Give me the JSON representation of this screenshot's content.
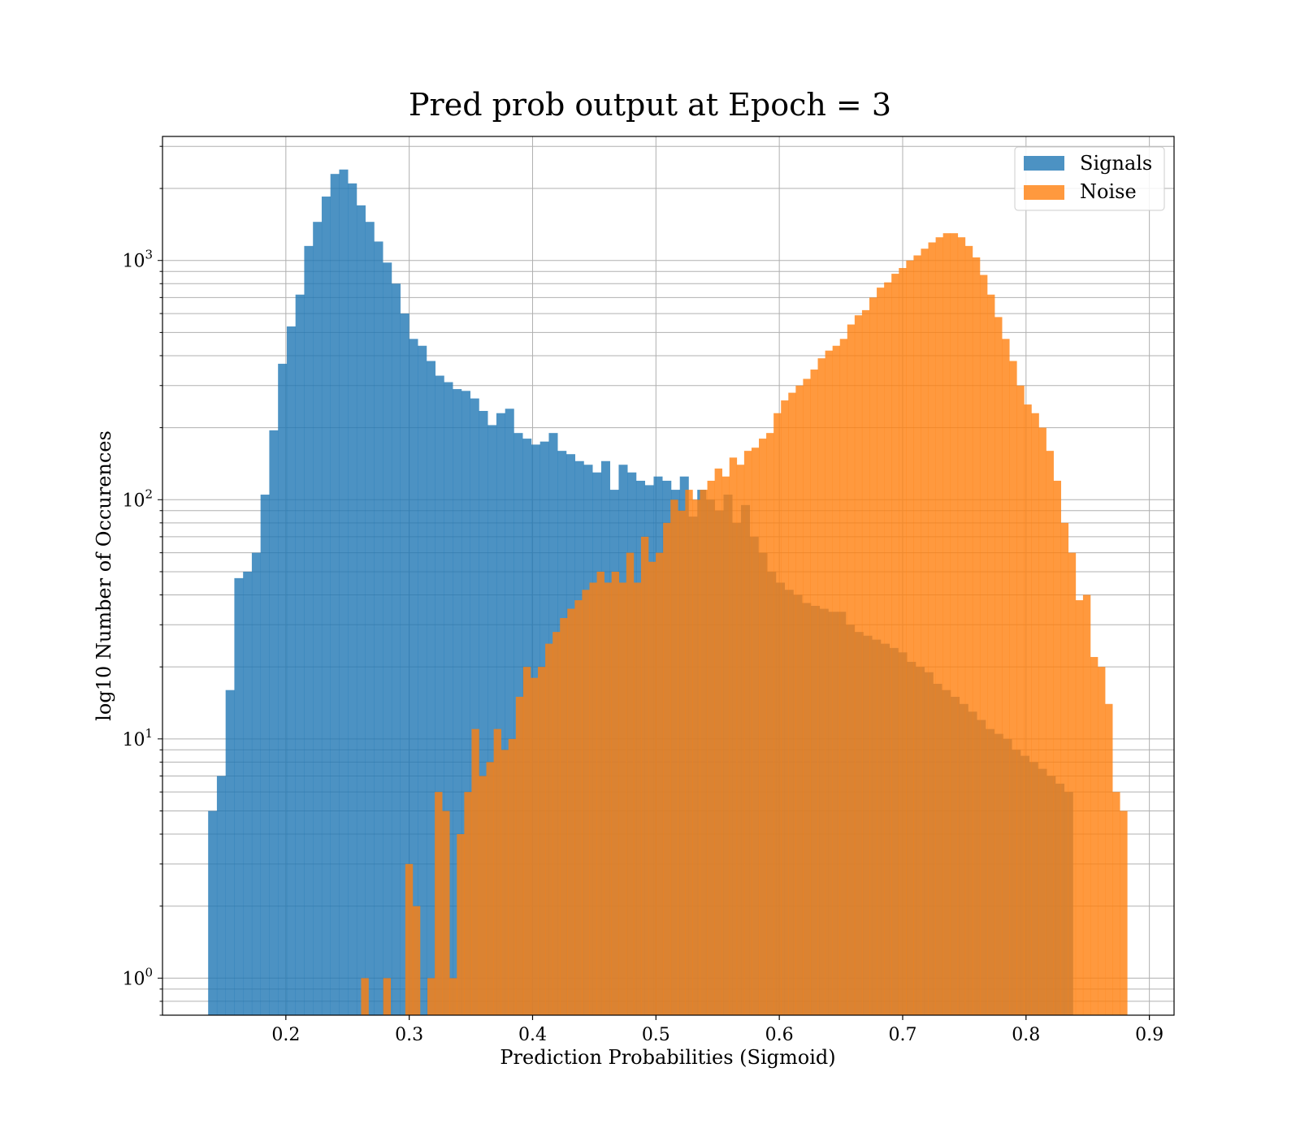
{
  "chart_data": {
    "type": "bar",
    "title": "Pred prob output at Epoch = 3",
    "xlabel": "Prediction Probabilities (Sigmoid)",
    "ylabel": "log10 Number of Occurences",
    "x_scale": "linear",
    "y_scale": "log",
    "xlim": [
      0.1,
      0.92
    ],
    "ylim": [
      0.7,
      3300
    ],
    "grid": true,
    "legend_position": "top-right",
    "x_ticks": [
      {
        "value": 0.2,
        "label": "0.2"
      },
      {
        "value": 0.3,
        "label": "0.3"
      },
      {
        "value": 0.4,
        "label": "0.4"
      },
      {
        "value": 0.5,
        "label": "0.5"
      },
      {
        "value": 0.6,
        "label": "0.6"
      },
      {
        "value": 0.7,
        "label": "0.7"
      },
      {
        "value": 0.8,
        "label": "0.8"
      },
      {
        "value": 0.9,
        "label": "0.9"
      }
    ],
    "y_ticks": [
      {
        "value": 1,
        "base": "10",
        "exponent": "0"
      },
      {
        "value": 10,
        "base": "10",
        "exponent": "1"
      },
      {
        "value": 100,
        "base": "10",
        "exponent": "2"
      },
      {
        "value": 1000,
        "base": "10",
        "exponent": "3"
      }
    ],
    "series": [
      {
        "name": "Signals",
        "color": "#1f77b4",
        "opacity": 0.8,
        "x_start": 0.137,
        "x_end": 0.838,
        "values": [
          5,
          7,
          16,
          47,
          50,
          60,
          105,
          195,
          370,
          530,
          720,
          1150,
          1450,
          1850,
          2300,
          2400,
          2100,
          1700,
          1450,
          1200,
          980,
          800,
          600,
          470,
          440,
          380,
          330,
          310,
          290,
          285,
          265,
          235,
          205,
          230,
          240,
          190,
          180,
          170,
          175,
          190,
          160,
          155,
          145,
          140,
          130,
          145,
          110,
          140,
          130,
          120,
          115,
          125,
          120,
          110,
          125,
          85,
          110,
          100,
          90,
          105,
          80,
          95,
          70,
          60,
          50,
          45,
          42,
          40,
          37,
          36,
          35,
          34,
          34,
          30,
          28,
          27,
          26,
          25,
          24,
          23,
          21,
          20,
          19,
          17,
          16,
          15,
          14,
          13,
          12,
          11,
          10.5,
          10,
          9,
          8.5,
          8,
          7.5,
          7,
          6.5,
          6
        ]
      },
      {
        "name": "Noise",
        "color": "#ff7f0e",
        "opacity": 0.8,
        "x_start": 0.261,
        "x_end": 0.882,
        "values": [
          1,
          0.5,
          0.5,
          1,
          0.5,
          0.5,
          3,
          2,
          0.5,
          1,
          6,
          5,
          1,
          4,
          6,
          11,
          7,
          8,
          11,
          9,
          10,
          15,
          20,
          18,
          20,
          25,
          28,
          32,
          35,
          38,
          42,
          45,
          50,
          45,
          50,
          45,
          60,
          45,
          70,
          55,
          60,
          80,
          100,
          90,
          110,
          100,
          110,
          120,
          135,
          125,
          150,
          140,
          160,
          165,
          180,
          190,
          230,
          260,
          280,
          300,
          320,
          350,
          390,
          420,
          440,
          470,
          540,
          590,
          620,
          700,
          770,
          810,
          880,
          930,
          1000,
          1050,
          1120,
          1190,
          1250,
          1300,
          1300,
          1250,
          1150,
          1030,
          870,
          720,
          580,
          470,
          380,
          300,
          250,
          230,
          200,
          160,
          120,
          80,
          60,
          38,
          40,
          22,
          20,
          14,
          6,
          5
        ]
      }
    ]
  }
}
